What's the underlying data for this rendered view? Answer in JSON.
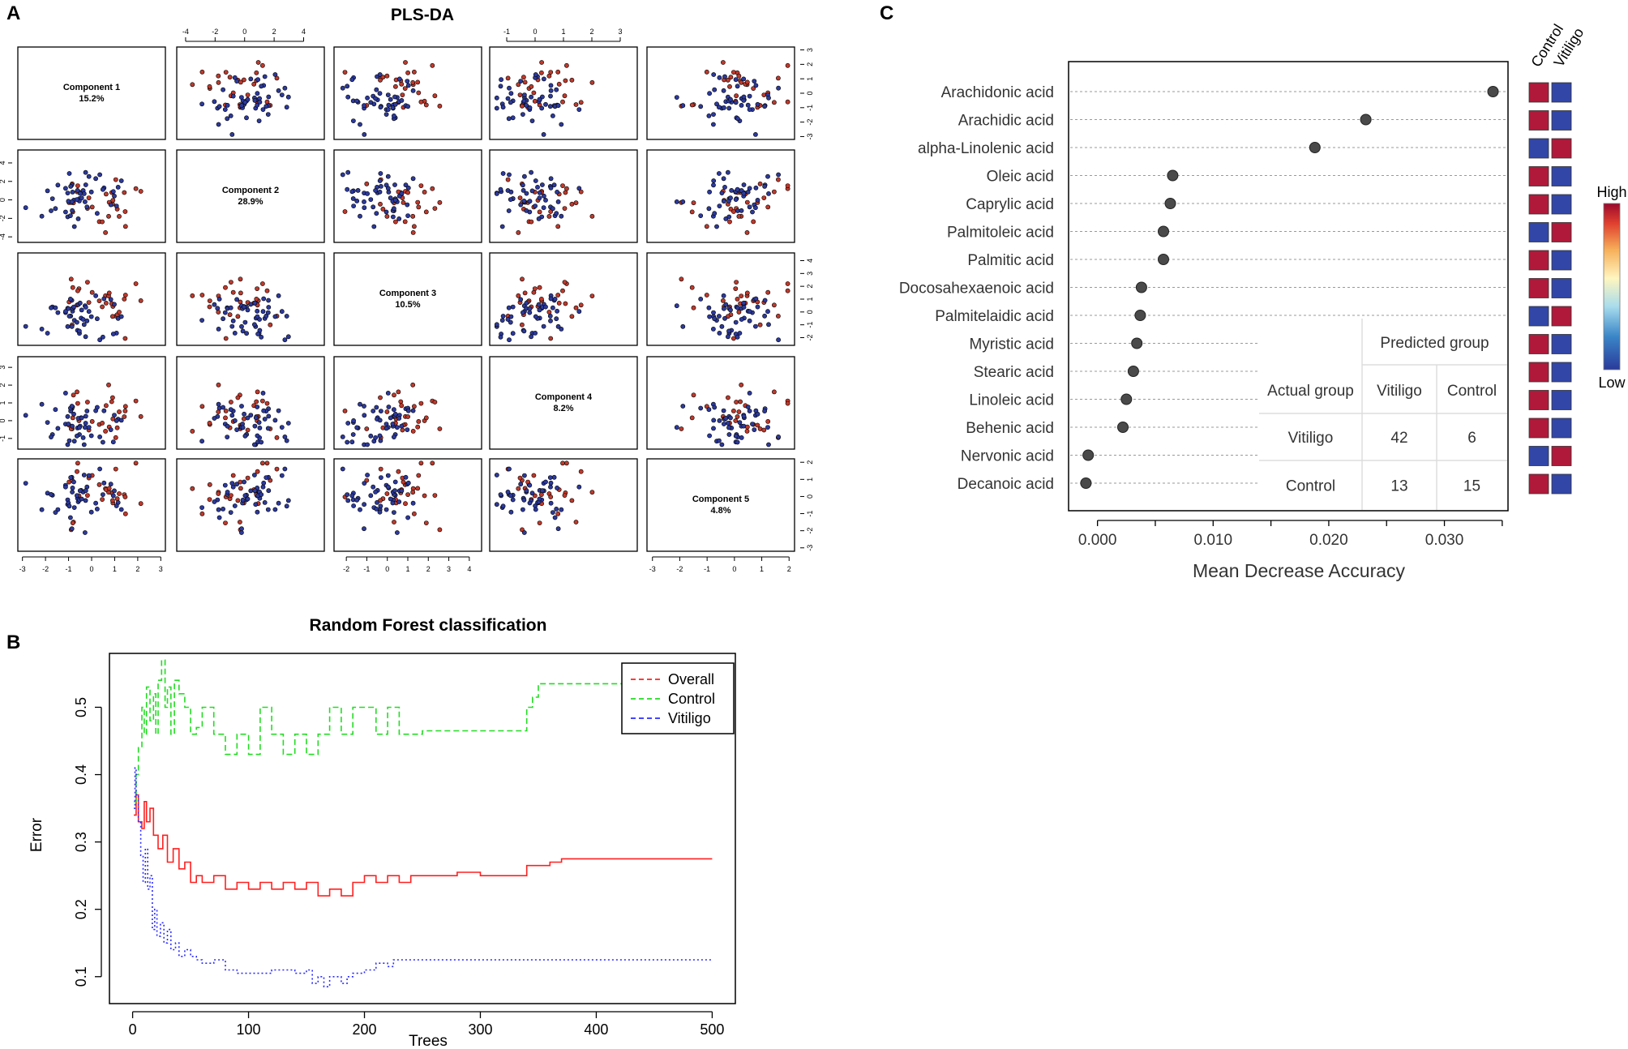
{
  "panel_labels": [
    "A",
    "B",
    "C"
  ],
  "chart_data": [
    {
      "id": "A",
      "type": "scatter",
      "title": "PLS-DA",
      "layout": "pairs-matrix",
      "components": [
        {
          "name": "Component 1",
          "variance": "15.2%"
        },
        {
          "name": "Component 2",
          "variance": "28.9%"
        },
        {
          "name": "Component 3",
          "variance": "10.5%"
        },
        {
          "name": "Component 4",
          "variance": "8.2%"
        },
        {
          "name": "Component 5",
          "variance": "4.8%"
        }
      ],
      "ranges": [
        [
          -3.2,
          3.2
        ],
        [
          -4.6,
          5.4
        ],
        [
          -2.6,
          4.6
        ],
        [
          -1.6,
          3.6
        ],
        [
          -3.2,
          2.2
        ]
      ],
      "ticks": [
        [
          -3,
          -2,
          -1,
          0,
          1,
          2,
          3
        ],
        [
          -4,
          -2,
          0,
          2,
          4
        ],
        [
          -2,
          -1,
          0,
          1,
          2,
          3,
          4
        ],
        [
          -1,
          0,
          1,
          2,
          3
        ],
        [
          -3,
          -2,
          -1,
          0,
          1,
          2
        ]
      ],
      "tick_labels": [
        [
          "-3",
          "-2",
          "-1",
          "0",
          "1",
          "2",
          "3"
        ],
        [
          "-4",
          "-2",
          "0",
          "2",
          "4"
        ],
        [
          "-2",
          "-1",
          "0",
          "1",
          "2",
          "3",
          "4"
        ],
        [
          "-1",
          "0",
          "1",
          "2",
          "3"
        ],
        [
          "-3",
          "-2",
          "-1",
          "0",
          "1",
          "2"
        ]
      ],
      "groups": [
        {
          "name": "Control",
          "color": "#c0392b"
        },
        {
          "name": "Vitiligo",
          "color": "#2c3a9e"
        }
      ],
      "samples_per_group": {
        "Control": 28,
        "Vitiligo": 48
      }
    },
    {
      "id": "B",
      "type": "line",
      "title": "Random Forest classification",
      "xlabel": "Trees",
      "ylabel": "Error",
      "xlim": [
        -20,
        520
      ],
      "ylim": [
        0.06,
        0.58
      ],
      "xticks": [
        0,
        100,
        200,
        300,
        400,
        500
      ],
      "xtick_labels": [
        "0",
        "100",
        "200",
        "300",
        "400",
        "500"
      ],
      "yticks": [
        0.1,
        0.2,
        0.3,
        0.4,
        0.5
      ],
      "ytick_labels": [
        "0.1",
        "0.2",
        "0.3",
        "0.4",
        "0.5"
      ],
      "legend_position": "top-right",
      "series": [
        {
          "name": "Overall",
          "color": "#ff2020",
          "dash": "solid",
          "points": [
            [
              1,
              0.34
            ],
            [
              3,
              0.37
            ],
            [
              5,
              0.33
            ],
            [
              8,
              0.32
            ],
            [
              10,
              0.36
            ],
            [
              12,
              0.33
            ],
            [
              15,
              0.35
            ],
            [
              18,
              0.31
            ],
            [
              22,
              0.29
            ],
            [
              26,
              0.31
            ],
            [
              30,
              0.27
            ],
            [
              35,
              0.29
            ],
            [
              40,
              0.26
            ],
            [
              45,
              0.27
            ],
            [
              50,
              0.24
            ],
            [
              55,
              0.25
            ],
            [
              60,
              0.24
            ],
            [
              70,
              0.25
            ],
            [
              80,
              0.23
            ],
            [
              90,
              0.24
            ],
            [
              100,
              0.23
            ],
            [
              110,
              0.24
            ],
            [
              120,
              0.23
            ],
            [
              130,
              0.24
            ],
            [
              140,
              0.23
            ],
            [
              150,
              0.24
            ],
            [
              160,
              0.22
            ],
            [
              170,
              0.23
            ],
            [
              180,
              0.22
            ],
            [
              190,
              0.24
            ],
            [
              200,
              0.25
            ],
            [
              210,
              0.24
            ],
            [
              220,
              0.25
            ],
            [
              230,
              0.24
            ],
            [
              240,
              0.25
            ],
            [
              260,
              0.25
            ],
            [
              280,
              0.255
            ],
            [
              300,
              0.25
            ],
            [
              330,
              0.25
            ],
            [
              340,
              0.265
            ],
            [
              360,
              0.27
            ],
            [
              370,
              0.275
            ],
            [
              380,
              0.275
            ],
            [
              420,
              0.275
            ],
            [
              500,
              0.275
            ]
          ]
        },
        {
          "name": "Control",
          "color": "#22dd22",
          "dash": "dashed",
          "points": [
            [
              1,
              0.36
            ],
            [
              3,
              0.4
            ],
            [
              5,
              0.44
            ],
            [
              8,
              0.5
            ],
            [
              10,
              0.46
            ],
            [
              12,
              0.53
            ],
            [
              15,
              0.48
            ],
            [
              18,
              0.52
            ],
            [
              20,
              0.46
            ],
            [
              22,
              0.54
            ],
            [
              25,
              0.57
            ],
            [
              28,
              0.5
            ],
            [
              30,
              0.53
            ],
            [
              33,
              0.46
            ],
            [
              36,
              0.54
            ],
            [
              40,
              0.52
            ],
            [
              45,
              0.5
            ],
            [
              50,
              0.46
            ],
            [
              55,
              0.47
            ],
            [
              60,
              0.5
            ],
            [
              70,
              0.46
            ],
            [
              80,
              0.43
            ],
            [
              90,
              0.46
            ],
            [
              100,
              0.43
            ],
            [
              110,
              0.5
            ],
            [
              120,
              0.46
            ],
            [
              130,
              0.43
            ],
            [
              140,
              0.46
            ],
            [
              150,
              0.43
            ],
            [
              160,
              0.46
            ],
            [
              170,
              0.5
            ],
            [
              180,
              0.46
            ],
            [
              190,
              0.5
            ],
            [
              200,
              0.5
            ],
            [
              210,
              0.46
            ],
            [
              220,
              0.5
            ],
            [
              230,
              0.46
            ],
            [
              250,
              0.465
            ],
            [
              280,
              0.465
            ],
            [
              300,
              0.465
            ],
            [
              320,
              0.465
            ],
            [
              330,
              0.465
            ],
            [
              340,
              0.5
            ],
            [
              345,
              0.515
            ],
            [
              350,
              0.535
            ],
            [
              360,
              0.535
            ],
            [
              400,
              0.535
            ],
            [
              500,
              0.535
            ]
          ]
        },
        {
          "name": "Vitiligo",
          "color": "#2b2bff",
          "dash": "dotted",
          "points": [
            [
              1,
              0.35
            ],
            [
              2,
              0.41
            ],
            [
              3,
              0.37
            ],
            [
              5,
              0.33
            ],
            [
              7,
              0.28
            ],
            [
              9,
              0.24
            ],
            [
              11,
              0.29
            ],
            [
              13,
              0.23
            ],
            [
              15,
              0.25
            ],
            [
              17,
              0.17
            ],
            [
              19,
              0.2
            ],
            [
              21,
              0.16
            ],
            [
              24,
              0.18
            ],
            [
              27,
              0.15
            ],
            [
              30,
              0.17
            ],
            [
              33,
              0.14
            ],
            [
              37,
              0.15
            ],
            [
              40,
              0.13
            ],
            [
              45,
              0.14
            ],
            [
              50,
              0.13
            ],
            [
              55,
              0.125
            ],
            [
              60,
              0.12
            ],
            [
              70,
              0.125
            ],
            [
              80,
              0.11
            ],
            [
              90,
              0.105
            ],
            [
              100,
              0.105
            ],
            [
              110,
              0.105
            ],
            [
              120,
              0.11
            ],
            [
              130,
              0.11
            ],
            [
              140,
              0.105
            ],
            [
              150,
              0.11
            ],
            [
              155,
              0.09
            ],
            [
              160,
              0.1
            ],
            [
              165,
              0.085
            ],
            [
              170,
              0.1
            ],
            [
              180,
              0.09
            ],
            [
              185,
              0.1
            ],
            [
              190,
              0.105
            ],
            [
              200,
              0.11
            ],
            [
              210,
              0.12
            ],
            [
              220,
              0.115
            ],
            [
              225,
              0.125
            ],
            [
              230,
              0.125
            ],
            [
              300,
              0.125
            ],
            [
              400,
              0.125
            ],
            [
              500,
              0.125
            ]
          ]
        }
      ]
    },
    {
      "id": "C",
      "type": "scatter",
      "subtype": "dotchart",
      "xlabel": "Mean Decrease Accuracy",
      "xlim": [
        -0.0025,
        0.0355
      ],
      "xticks": [
        0.0,
        0.01,
        0.02,
        0.03
      ],
      "xtick_labels": [
        "0.000",
        "0.010",
        "0.020",
        "0.030"
      ],
      "categories": [
        "Arachidonic acid",
        "Arachidic acid",
        "alpha-Linolenic acid",
        "Oleic acid",
        "Caprylic acid",
        "Palmitoleic acid",
        "Palmitic acid",
        "Docosahexaenoic acid",
        "Palmitelaidic acid",
        "Myristic acid",
        "Stearic acid",
        "Linoleic acid",
        "Behenic acid",
        "Nervonic acid",
        "Decanoic acid"
      ],
      "values": [
        0.0342,
        0.0232,
        0.0188,
        0.0065,
        0.0063,
        0.0057,
        0.0057,
        0.0038,
        0.0037,
        0.0034,
        0.0031,
        0.0025,
        0.0022,
        -0.0008,
        -0.001
      ],
      "heatmap": {
        "columns": [
          "Control",
          "Vitiligo"
        ],
        "high_color": "#b0193a",
        "low_color": "#3246a8",
        "cells": [
          [
            "high",
            "low"
          ],
          [
            "high",
            "low"
          ],
          [
            "low",
            "high"
          ],
          [
            "high",
            "low"
          ],
          [
            "high",
            "low"
          ],
          [
            "low",
            "high"
          ],
          [
            "high",
            "low"
          ],
          [
            "high",
            "low"
          ],
          [
            "low",
            "high"
          ],
          [
            "high",
            "low"
          ],
          [
            "high",
            "low"
          ],
          [
            "high",
            "low"
          ],
          [
            "high",
            "low"
          ],
          [
            "low",
            "high"
          ],
          [
            "high",
            "low"
          ]
        ]
      },
      "color_legend": {
        "high": "High",
        "low": "Low"
      },
      "confusion_table": {
        "predicted_header": "Predicted group",
        "actual_header": "Actual group",
        "columns": [
          "Vitiligo",
          "Control"
        ],
        "rows": [
          {
            "label": "Vitiligo",
            "values": [
              "42",
              "6"
            ]
          },
          {
            "label": "Control",
            "values": [
              "13",
              "15"
            ]
          }
        ]
      }
    }
  ]
}
